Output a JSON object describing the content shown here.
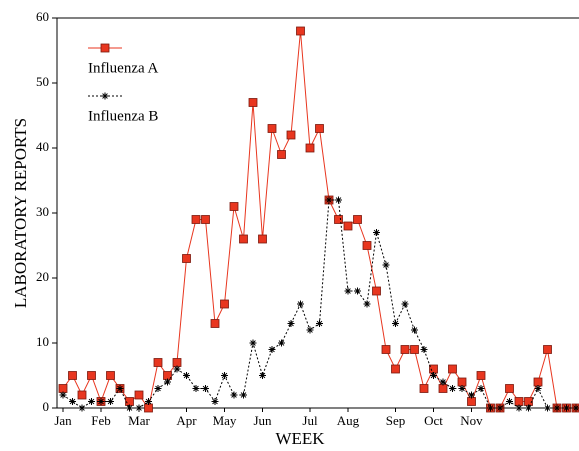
{
  "chart_data": {
    "type": "line",
    "x_label": "WEEK",
    "y_label": "LABORATORY REPORTS",
    "categories": [
      "Jan",
      null,
      null,
      null,
      "Feb",
      null,
      null,
      null,
      "Mar",
      null,
      null,
      null,
      null,
      "Apr",
      null,
      null,
      null,
      "May",
      null,
      null,
      null,
      "Jun",
      null,
      null,
      null,
      null,
      "Jul",
      null,
      null,
      null,
      "Aug",
      null,
      null,
      null,
      null,
      "Sep",
      null,
      null,
      null,
      "Oct",
      null,
      null,
      null,
      "Nov",
      null,
      null,
      null,
      null,
      null,
      null,
      null,
      null,
      null,
      null,
      null
    ],
    "series": [
      {
        "name": "Influenza A",
        "color": "#e8361f",
        "line": "solid",
        "marker": "square",
        "values": [
          3,
          5,
          2,
          5,
          1,
          5,
          3,
          1,
          2,
          0,
          7,
          5,
          7,
          23,
          29,
          29,
          13,
          16,
          31,
          26,
          47,
          26,
          43,
          39,
          42,
          58,
          40,
          43,
          32,
          29,
          28,
          29,
          25,
          18,
          9,
          6,
          9,
          9,
          3,
          6,
          3,
          6,
          4,
          1,
          5,
          0,
          0,
          3,
          1,
          1,
          4,
          9,
          0,
          0,
          0
        ]
      },
      {
        "name": "Influenza B",
        "color": "#000000",
        "line": "dotted",
        "marker": "star",
        "values": [
          2,
          1,
          0,
          1,
          1,
          1,
          3,
          0,
          0,
          1,
          3,
          4,
          6,
          5,
          3,
          3,
          1,
          5,
          2,
          2,
          10,
          5,
          9,
          10,
          13,
          16,
          12,
          13,
          32,
          32,
          18,
          18,
          16,
          27,
          22,
          13,
          16,
          12,
          9,
          5,
          4,
          3,
          3,
          2,
          3,
          0,
          0,
          1,
          0,
          0,
          3,
          0,
          0,
          0,
          0
        ]
      }
    ],
    "ylim": [
      0,
      60
    ],
    "yticks": [
      0,
      10,
      20,
      30,
      40,
      50,
      60
    ],
    "grid": false
  }
}
